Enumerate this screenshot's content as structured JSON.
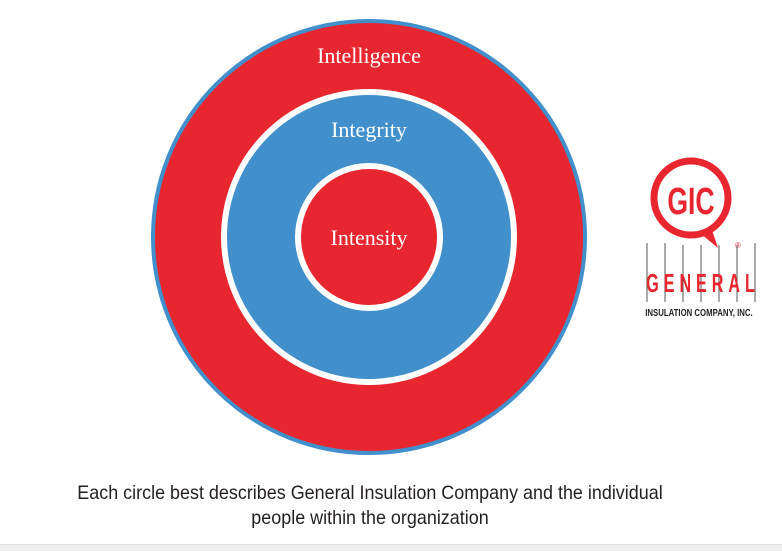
{
  "diagram": {
    "rings": [
      {
        "label": "Intelligence",
        "color": "#e8262f"
      },
      {
        "label": "Integrity",
        "color": "#418fcb"
      },
      {
        "label": "Intensity",
        "color": "#e8262f"
      }
    ],
    "outline_color": "#418fcb"
  },
  "logo": {
    "monogram": "GIC",
    "name": "GENERAL",
    "tagline": "INSULATION COMPANY, INC.",
    "registered": "®",
    "color": "#e8262f"
  },
  "caption": {
    "line1": "Each circle best describes General Insulation Company and the individual",
    "line2": "people within the organization"
  }
}
